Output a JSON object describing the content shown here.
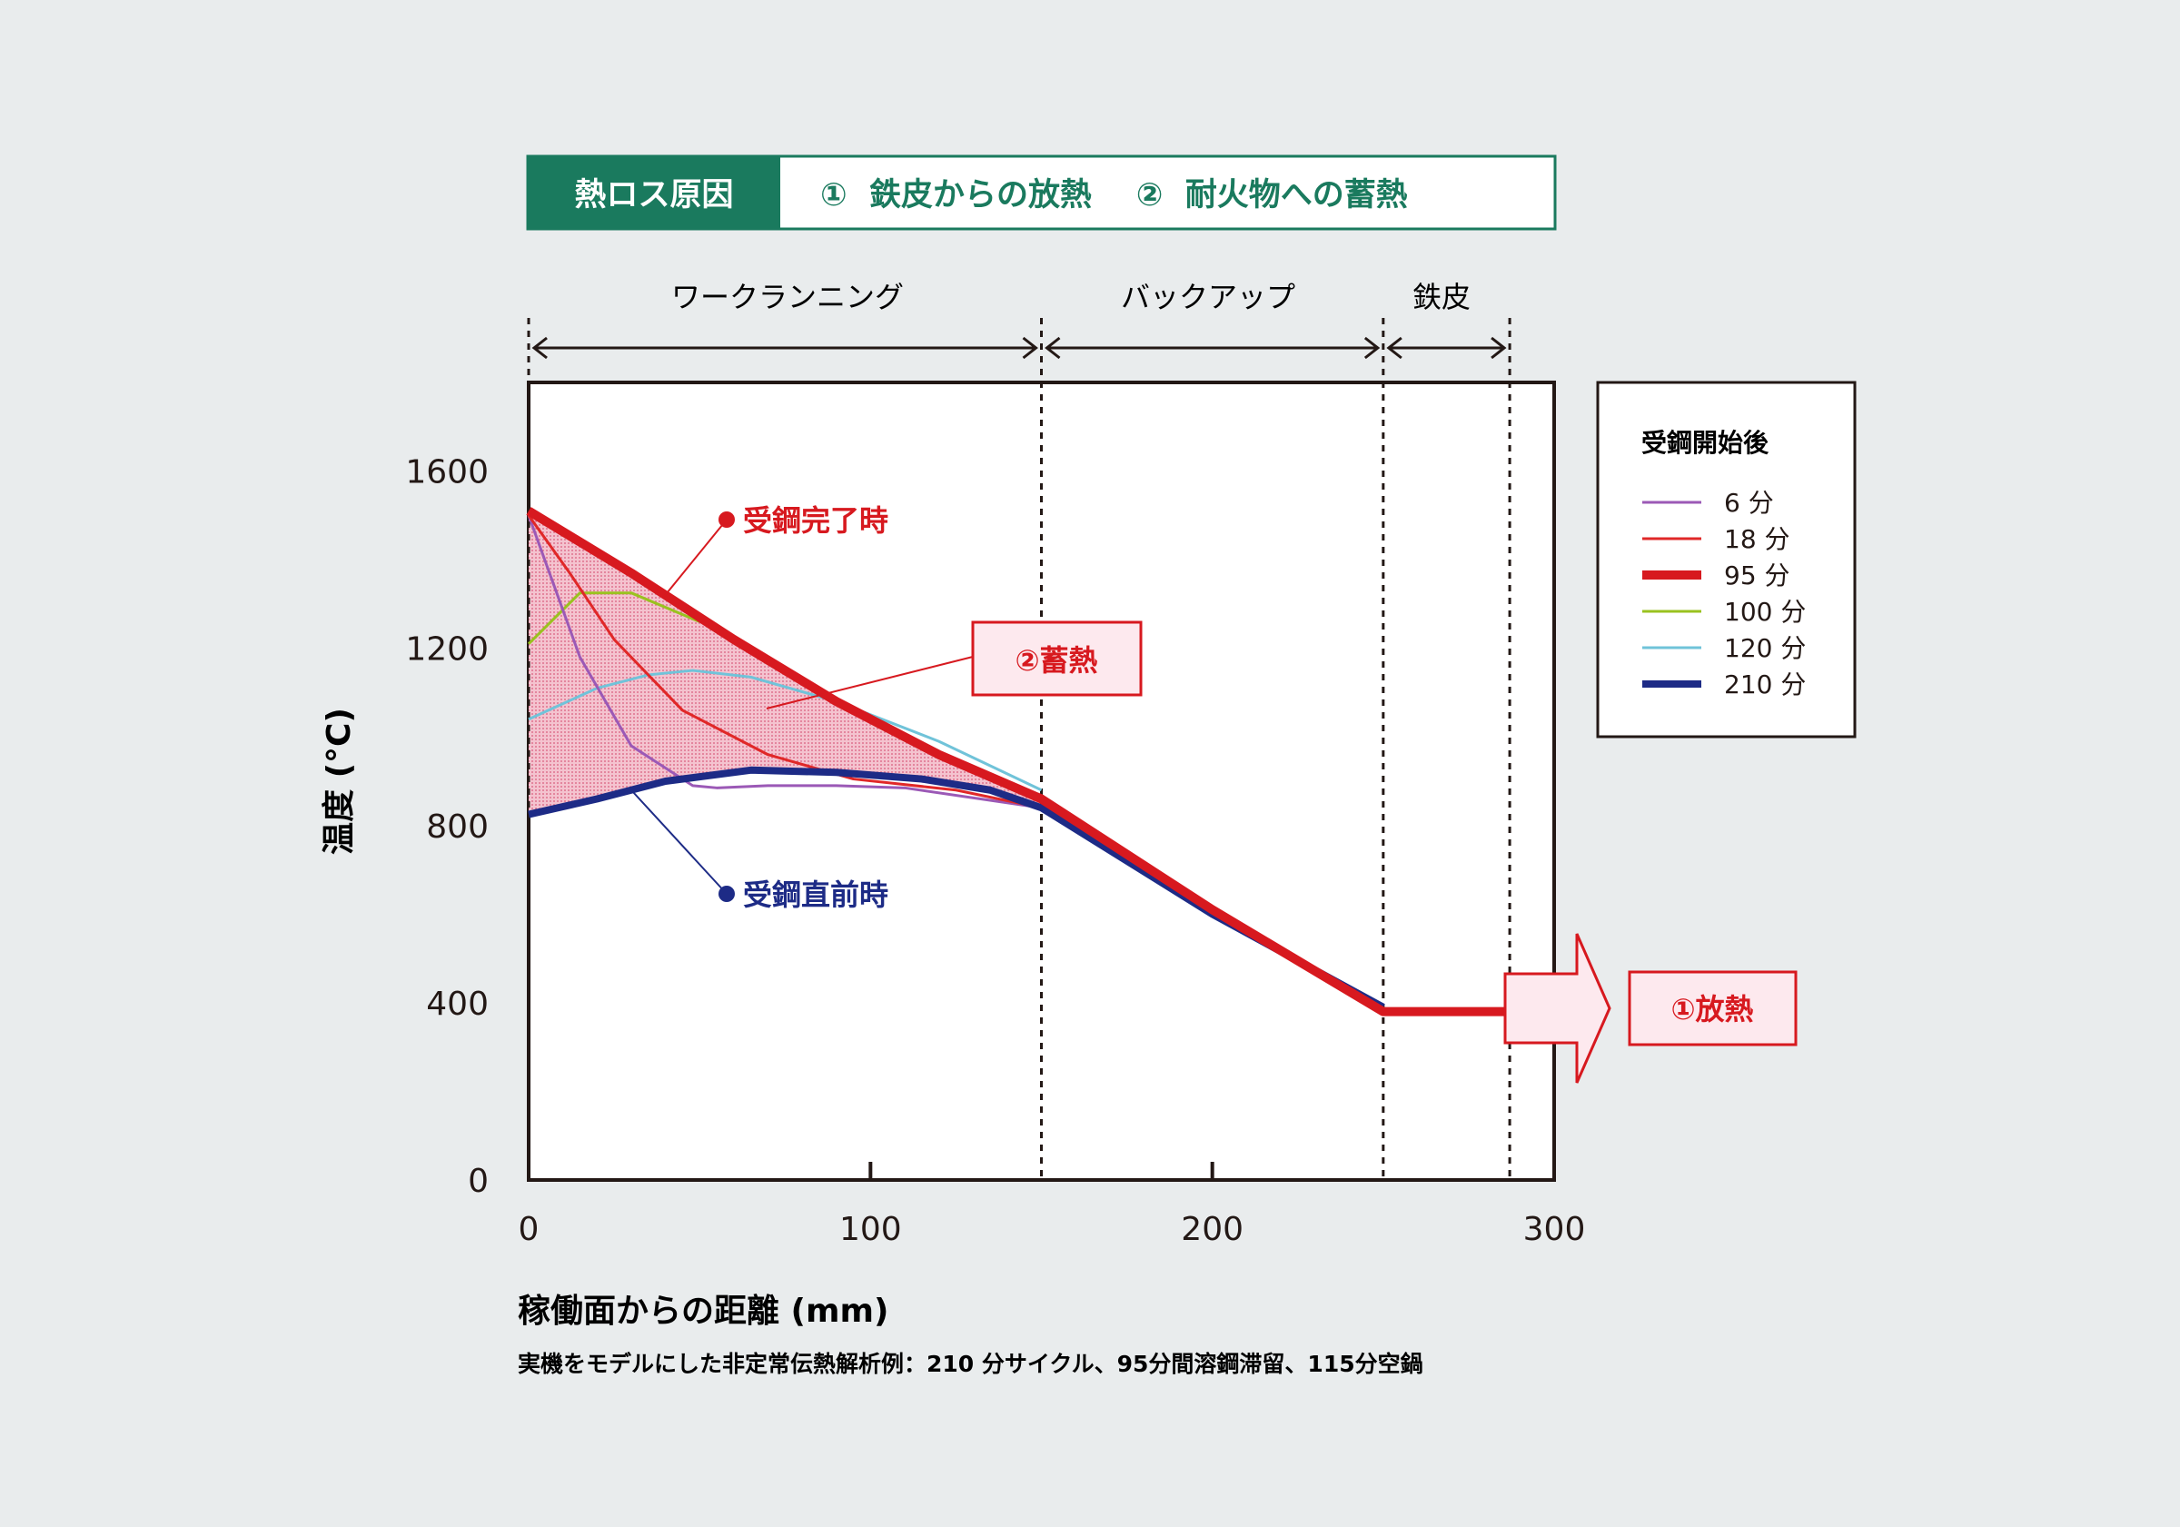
{
  "header": {
    "label": "熱ロス原因",
    "causes": "①  鉄皮からの放熱    ②  耐火物への蓄熱"
  },
  "zones": [
    "ワークランニング",
    "バックアップ",
    "鉄皮"
  ],
  "colors": {
    "header_green": "#1a7a5e",
    "accent_red": "#d7191f",
    "navy": "#1d2b86",
    "band_fill": "#f4b3c2"
  },
  "annotations": {
    "completion": "受鋼完了時",
    "heat_storage": "②蓄熱",
    "before": "受鋼直前時",
    "heat_release": "①放熱"
  },
  "legend": {
    "title": "受鋼開始後",
    "items": [
      {
        "label": "6 分",
        "color": "#9b59b6",
        "width": 3
      },
      {
        "label": "18 分",
        "color": "#e02828",
        "width": 3
      },
      {
        "label": "95 分",
        "color": "#d7191f",
        "width": 10
      },
      {
        "label": "100 分",
        "color": "#9ac21f",
        "width": 3
      },
      {
        "label": "120 分",
        "color": "#70c3d9",
        "width": 3
      },
      {
        "label": "210 分",
        "color": "#1d2b86",
        "width": 8
      }
    ]
  },
  "footnote": "実機をモデルにした非定常伝熱解析例：210 分サイクル、95分間溶鋼滞留、115分空鍋",
  "chart_data": {
    "type": "line",
    "xlabel": "稼働面からの距離 (mm)",
    "ylabel": "温度 (°C)",
    "xlim": [
      0,
      300
    ],
    "ylim": [
      0,
      1800
    ],
    "xticks": [
      0,
      100,
      200,
      300
    ],
    "yticks": [
      0,
      400,
      800,
      1200,
      1600
    ],
    "zone_boundaries": [
      0,
      150,
      250,
      287
    ],
    "series": [
      {
        "name": "6 分",
        "x": [
          0,
          15,
          30,
          48,
          55,
          70,
          90,
          110,
          150
        ],
        "y": [
          1500,
          1180,
          980,
          890,
          885,
          890,
          890,
          885,
          840
        ]
      },
      {
        "name": "18 分",
        "x": [
          0,
          12,
          25,
          45,
          70,
          95,
          125,
          150
        ],
        "y": [
          1500,
          1370,
          1220,
          1060,
          960,
          905,
          880,
          840
        ]
      },
      {
        "name": "95 分",
        "x": [
          0,
          30,
          60,
          90,
          120,
          150,
          200,
          250,
          287
        ],
        "y": [
          1510,
          1370,
          1220,
          1080,
          960,
          860,
          610,
          380,
          380
        ]
      },
      {
        "name": "100 分",
        "x": [
          0,
          15,
          30,
          50
        ],
        "y": [
          1210,
          1325,
          1325,
          1260
        ]
      },
      {
        "name": "120 分",
        "x": [
          0,
          20,
          35,
          48,
          65,
          90,
          120,
          150
        ],
        "y": [
          1040,
          1110,
          1140,
          1150,
          1135,
          1080,
          990,
          880
        ]
      },
      {
        "name": "210 分",
        "x": [
          0,
          20,
          40,
          65,
          90,
          115,
          135,
          150,
          200,
          250
        ],
        "y": [
          825,
          860,
          900,
          925,
          920,
          905,
          880,
          840,
          600,
          390
        ]
      }
    ]
  }
}
